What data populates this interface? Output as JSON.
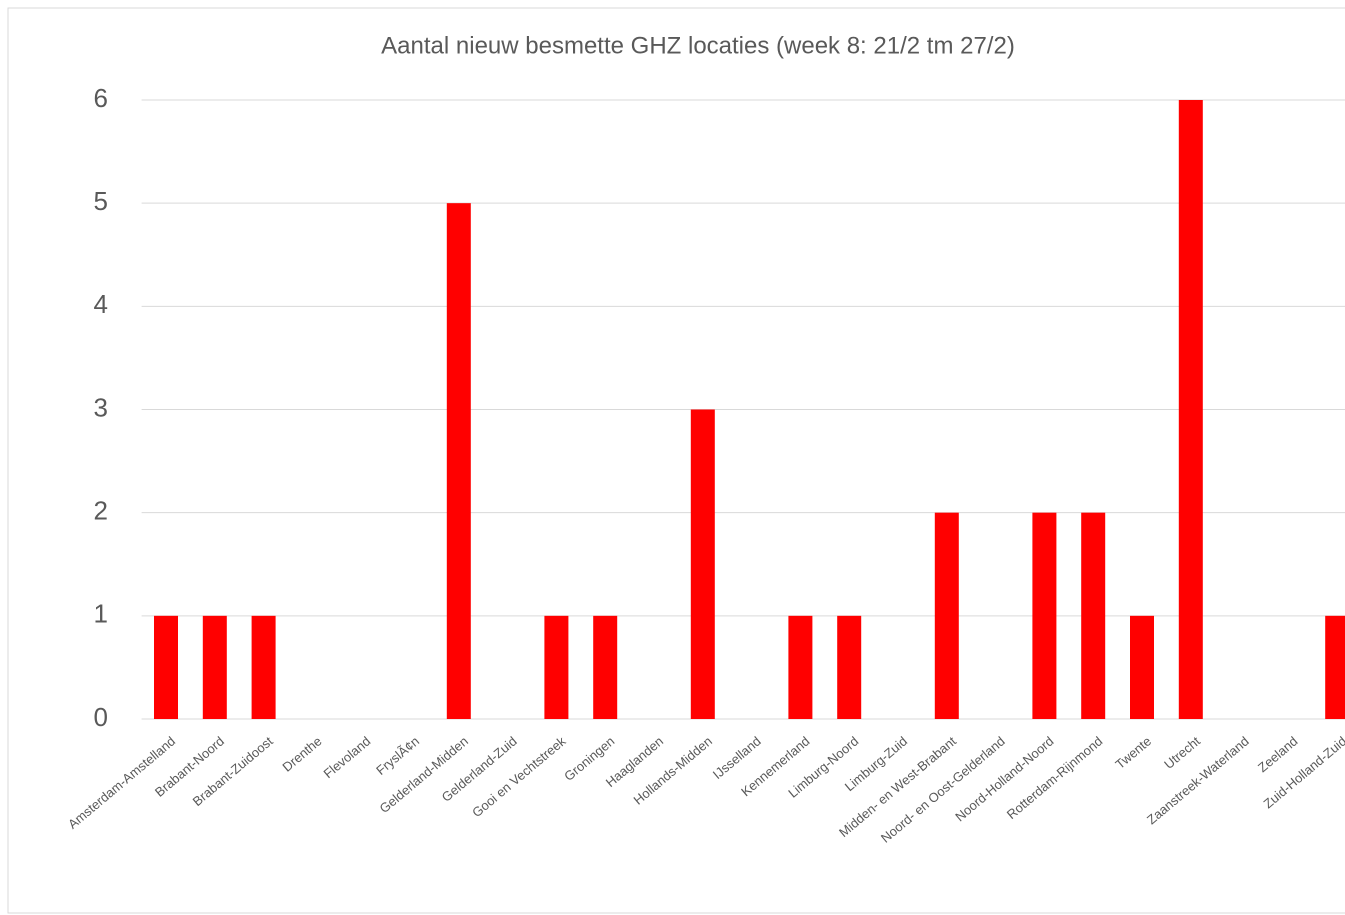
{
  "chart_data": {
    "type": "bar",
    "title": "Aantal nieuw besmette GHZ locaties (week 8: 21/2 tm 27/2)",
    "categories": [
      "Amsterdam-Amstelland",
      "Brabant-Noord",
      "Brabant-Zuidoost",
      "Drenthe",
      "Flevoland",
      "FryslÃ¢n",
      "Gelderland-Midden",
      "Gelderland-Zuid",
      "Gooi en Vechtstreek",
      "Groningen",
      "Haaglanden",
      "Hollands-Midden",
      "IJsselland",
      "Kennemerland",
      "Limburg-Noord",
      "Limburg-Zuid",
      "Midden- en West-Brabant",
      "Noord- en Oost-Gelderland",
      "Noord-Holland-Noord",
      "Rotterdam-Rijnmond",
      "Twente",
      "Utrecht",
      "Zaanstreek-Waterland",
      "Zeeland",
      "Zuid-Holland-Zuid"
    ],
    "values": [
      1,
      1,
      1,
      0,
      0,
      0,
      5,
      0,
      1,
      1,
      0,
      3,
      0,
      1,
      1,
      0,
      2,
      0,
      2,
      2,
      1,
      6,
      0,
      0,
      1
    ],
    "color": "#ff0000",
    "ylim": [
      0,
      6
    ],
    "yticks": [
      0,
      1,
      2,
      3,
      4,
      5,
      6
    ],
    "grid": true
  }
}
